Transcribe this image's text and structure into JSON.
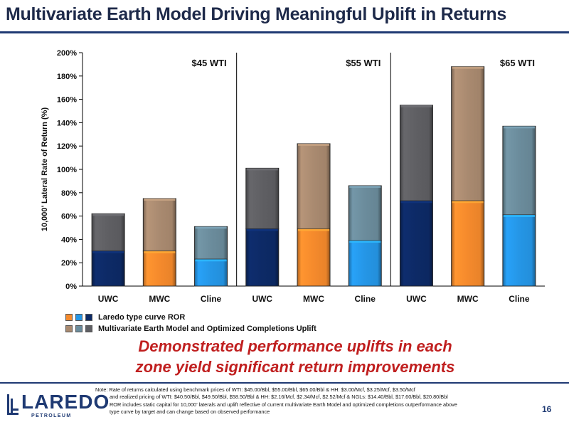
{
  "title": "Multivariate Earth Model Driving Meaningful Uplift in Returns",
  "chart_data": {
    "type": "bar",
    "stacked": true,
    "ylabel": "10,000’ Lateral Rate of Return (%)",
    "ylim": [
      0,
      200
    ],
    "yticks": [
      "0%",
      "20%",
      "40%",
      "60%",
      "80%",
      "100%",
      "120%",
      "140%",
      "160%",
      "180%",
      "200%"
    ],
    "grid": false,
    "price_groups": [
      {
        "label": "$45 WTI",
        "bars": [
          {
            "category": "UWC",
            "base": 30,
            "total": 62
          },
          {
            "category": "MWC",
            "base": 30,
            "total": 75
          },
          {
            "category": "Cline",
            "base": 23,
            "total": 51
          }
        ]
      },
      {
        "label": "$55 WTI",
        "bars": [
          {
            "category": "UWC",
            "base": 49,
            "total": 101
          },
          {
            "category": "MWC",
            "base": 49,
            "total": 122
          },
          {
            "category": "Cline",
            "base": 39,
            "total": 86
          }
        ]
      },
      {
        "label": "$65 WTI",
        "bars": [
          {
            "category": "UWC",
            "base": 73,
            "total": 155
          },
          {
            "category": "MWC",
            "base": 73,
            "total": 188
          },
          {
            "category": "Cline",
            "base": 61,
            "total": 137
          }
        ]
      }
    ],
    "series": [
      {
        "name": "Laredo type curve ROR",
        "component": "base"
      },
      {
        "name": "Multivariate Earth Model and Optimized Completions Uplift",
        "component": "uplift"
      }
    ],
    "colors": {
      "UWC": {
        "base": "#0d2a66",
        "uplift": "#5f5f63"
      },
      "MWC": {
        "base": "#f58a2c",
        "uplift": "#a98a70"
      },
      "Cline": {
        "base": "#2596e6",
        "uplift": "#6b8c9c"
      }
    },
    "legend_position": "bottom-left"
  },
  "callout": {
    "line1": "Demonstrated performance uplifts in each",
    "line2": "zone yield significant return improvements"
  },
  "note": {
    "line1": "Note: Rate of returns calculated using benchmark prices of WTI: $45.00/Bbl, $55.00/Bbl, $65.00/Bbl & HH: $3.00/Mcf, $3.25/Mcf, $3.50/Mcf",
    "line2": "and realized pricing of WTI: $40.50/Bbl, $49.50/Bbl, $58.50/Bbl & HH: $2.16/Mcf, $2.34/Mcf, $2.52/Mcf & NGLs: $14.40/Bbl, $17.60/Bbl, $20.80/Bbl",
    "line3": "ROR includes static capital for 10,000’ laterals and uplift reflective of current multivariate Earth Model and optimized completions outperformance above",
    "line4": "type curve by target and can change based on observed performance"
  },
  "logo": {
    "word": "LAREDO",
    "sub": "PETROLEUM"
  },
  "page_number": "16"
}
